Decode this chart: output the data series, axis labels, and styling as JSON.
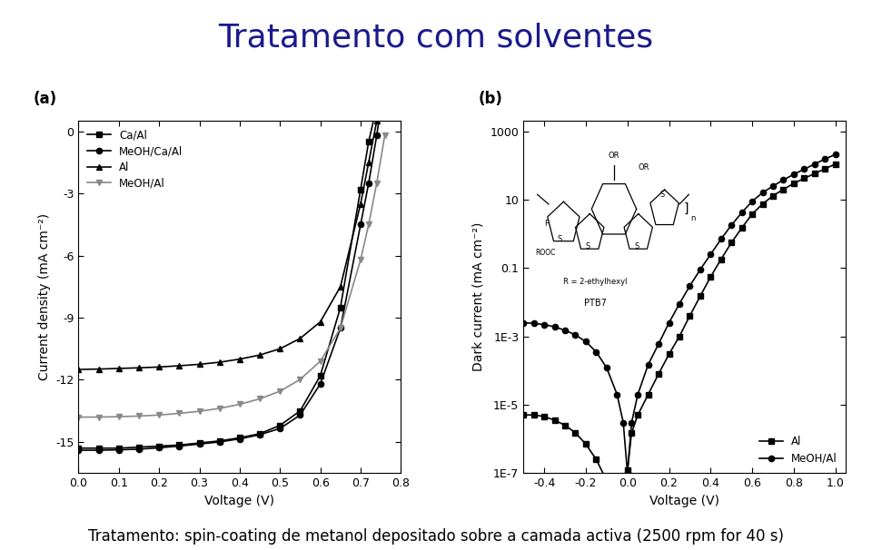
{
  "title": "Tratamento com solventes",
  "title_color": "#1a1a8c",
  "title_fontsize": 26,
  "subtitle": "Tratamento: spin-coating de metanol depositado sobre a camada activa (2500 rpm for 40 s)",
  "subtitle_fontsize": 12,
  "panel_a": {
    "label": "(a)",
    "xlabel": "Voltage (V)",
    "ylabel": "Current density (mA cm⁻²)",
    "xlim": [
      0.0,
      0.8
    ],
    "ylim": [
      -16.5,
      0.5
    ],
    "yticks": [
      0,
      -3,
      -6,
      -9,
      -12,
      -15
    ],
    "xticks": [
      0.0,
      0.1,
      0.2,
      0.3,
      0.4,
      0.5,
      0.6,
      0.7,
      0.8
    ],
    "series": {
      "Ca/Al": {
        "color": "black",
        "marker": "s",
        "x": [
          0.0,
          0.05,
          0.1,
          0.15,
          0.2,
          0.25,
          0.3,
          0.35,
          0.4,
          0.45,
          0.5,
          0.55,
          0.6,
          0.65,
          0.7,
          0.72,
          0.74,
          0.76
        ],
        "y": [
          -15.3,
          -15.3,
          -15.3,
          -15.25,
          -15.2,
          -15.15,
          -15.05,
          -14.95,
          -14.8,
          -14.6,
          -14.2,
          -13.5,
          -11.8,
          -8.5,
          -2.8,
          -0.5,
          1.2,
          3.5
        ]
      },
      "MeOH/Ca/Al": {
        "color": "black",
        "marker": "o",
        "x": [
          0.0,
          0.05,
          0.1,
          0.15,
          0.2,
          0.25,
          0.3,
          0.35,
          0.4,
          0.45,
          0.5,
          0.55,
          0.6,
          0.65,
          0.7,
          0.72,
          0.74,
          0.76
        ],
        "y": [
          -15.4,
          -15.4,
          -15.38,
          -15.35,
          -15.28,
          -15.2,
          -15.1,
          -15.0,
          -14.85,
          -14.65,
          -14.35,
          -13.7,
          -12.2,
          -9.5,
          -4.5,
          -2.5,
          -0.2,
          2.5
        ]
      },
      "Al": {
        "color": "black",
        "marker": "^",
        "x": [
          0.0,
          0.05,
          0.1,
          0.15,
          0.2,
          0.25,
          0.3,
          0.35,
          0.4,
          0.45,
          0.5,
          0.55,
          0.6,
          0.65,
          0.7,
          0.72,
          0.74,
          0.76
        ],
        "y": [
          -11.5,
          -11.48,
          -11.45,
          -11.42,
          -11.38,
          -11.32,
          -11.25,
          -11.15,
          -11.0,
          -10.8,
          -10.5,
          -10.0,
          -9.2,
          -7.5,
          -3.5,
          -1.5,
          0.5,
          3.0
        ]
      },
      "MeOH/Al": {
        "color": "#888888",
        "marker": "v",
        "x": [
          0.0,
          0.05,
          0.1,
          0.15,
          0.2,
          0.25,
          0.3,
          0.35,
          0.4,
          0.45,
          0.5,
          0.55,
          0.6,
          0.65,
          0.7,
          0.72,
          0.74,
          0.76
        ],
        "y": [
          -13.8,
          -13.8,
          -13.78,
          -13.75,
          -13.7,
          -13.62,
          -13.52,
          -13.38,
          -13.18,
          -12.92,
          -12.55,
          -11.98,
          -11.1,
          -9.5,
          -6.2,
          -4.5,
          -2.5,
          -0.2
        ]
      }
    }
  },
  "panel_b": {
    "label": "(b)",
    "xlabel": "Voltage (V)",
    "ylabel": "Dark current (mA cm⁻²)",
    "xlim": [
      -0.5,
      1.05
    ],
    "xticks": [
      -0.4,
      -0.2,
      0.0,
      0.2,
      0.4,
      0.6,
      0.8,
      1.0
    ],
    "ytick_labels": [
      "1E-7",
      "1E-5",
      "1E-3",
      "0.1",
      "10",
      "1000"
    ],
    "ytick_vals": [
      1e-07,
      1e-05,
      0.001,
      0.1,
      10,
      1000
    ],
    "series": {
      "Al": {
        "color": "black",
        "marker": "s",
        "x": [
          -0.5,
          -0.45,
          -0.4,
          -0.35,
          -0.3,
          -0.25,
          -0.2,
          -0.15,
          -0.1,
          -0.05,
          -0.02,
          0.0,
          0.02,
          0.05,
          0.1,
          0.15,
          0.2,
          0.25,
          0.3,
          0.35,
          0.4,
          0.45,
          0.5,
          0.55,
          0.6,
          0.65,
          0.7,
          0.75,
          0.8,
          0.85,
          0.9,
          0.95,
          1.0
        ],
        "y": [
          5e-06,
          5e-06,
          4.5e-06,
          3.5e-06,
          2.5e-06,
          1.5e-06,
          7e-07,
          2.5e-07,
          6e-08,
          1.2e-08,
          1.5e-08,
          1.2e-07,
          1.5e-06,
          5e-06,
          2e-05,
          8e-05,
          0.0003,
          0.001,
          0.004,
          0.015,
          0.055,
          0.18,
          0.55,
          1.5,
          3.8,
          7.5,
          13.0,
          20.0,
          30.0,
          42.0,
          58.0,
          80.0,
          110.0
        ]
      },
      "MeOH/Al": {
        "color": "black",
        "marker": "o",
        "x": [
          -0.5,
          -0.45,
          -0.4,
          -0.35,
          -0.3,
          -0.25,
          -0.2,
          -0.15,
          -0.1,
          -0.05,
          -0.02,
          0.0,
          0.02,
          0.05,
          0.1,
          0.15,
          0.2,
          0.25,
          0.3,
          0.35,
          0.4,
          0.45,
          0.5,
          0.55,
          0.6,
          0.65,
          0.7,
          0.75,
          0.8,
          0.85,
          0.9,
          0.95,
          1.0
        ],
        "y": [
          0.0025,
          0.0024,
          0.0022,
          0.0019,
          0.0015,
          0.0011,
          0.0007,
          0.00035,
          0.00012,
          2e-05,
          3e-06,
          1e-07,
          3e-06,
          2e-05,
          0.00015,
          0.0006,
          0.0025,
          0.009,
          0.03,
          0.09,
          0.25,
          0.7,
          1.8,
          4.2,
          9.0,
          16.0,
          25.0,
          38.0,
          55.0,
          78.0,
          110.0,
          155.0,
          210.0
        ]
      }
    }
  }
}
